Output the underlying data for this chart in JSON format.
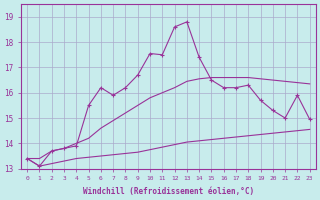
{
  "xlabel": "Windchill (Refroidissement éolien,°C)",
  "background_color": "#c8ecec",
  "grid_color": "#aaaacc",
  "line_color": "#993399",
  "x_hours": [
    0,
    1,
    2,
    3,
    4,
    5,
    6,
    7,
    8,
    9,
    10,
    11,
    12,
    13,
    14,
    15,
    16,
    17,
    18,
    19,
    20,
    21,
    22,
    23
  ],
  "y_temp": [
    13.4,
    13.1,
    13.7,
    13.8,
    13.9,
    15.5,
    16.2,
    15.9,
    16.2,
    16.7,
    17.55,
    17.5,
    18.6,
    18.8,
    17.4,
    16.5,
    16.2,
    16.2,
    16.3,
    15.7,
    15.3,
    15.0,
    15.9,
    14.95
  ],
  "y_min": [
    13.4,
    13.1,
    13.2,
    13.3,
    13.4,
    13.45,
    13.5,
    13.55,
    13.6,
    13.65,
    13.75,
    13.85,
    13.95,
    14.05,
    14.1,
    14.15,
    14.2,
    14.25,
    14.3,
    14.35,
    14.4,
    14.45,
    14.5,
    14.55
  ],
  "y_max": [
    13.4,
    13.4,
    13.7,
    13.8,
    14.0,
    14.2,
    14.6,
    14.9,
    15.2,
    15.5,
    15.8,
    16.0,
    16.2,
    16.45,
    16.55,
    16.6,
    16.6,
    16.6,
    16.6,
    16.55,
    16.5,
    16.45,
    16.4,
    16.35
  ],
  "ylim": [
    13.0,
    19.5
  ],
  "yticks": [
    13,
    14,
    15,
    16,
    17,
    18,
    19
  ],
  "xtick_labels": [
    "0",
    "1",
    "2",
    "3",
    "4",
    "5",
    "6",
    "7",
    "8",
    "9",
    "10",
    "11",
    "12",
    "13",
    "14",
    "15",
    "16",
    "17",
    "18",
    "19",
    "20",
    "21",
    "22",
    "23"
  ]
}
